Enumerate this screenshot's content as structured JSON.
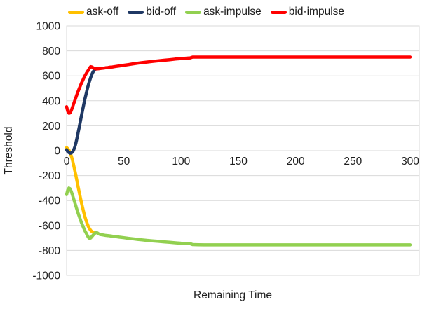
{
  "chart_data": {
    "type": "line",
    "title": "",
    "xlabel": "Remaining Time",
    "ylabel": "Threshold",
    "xlim": [
      0,
      300
    ],
    "ylim": [
      -1000,
      1000
    ],
    "x_ticks": [
      0,
      50,
      100,
      150,
      200,
      250,
      300
    ],
    "y_ticks": [
      1000,
      800,
      600,
      400,
      200,
      0,
      -200,
      -400,
      -600,
      -800,
      -1000
    ],
    "grid": "horizontal",
    "gridline_color": "#d9d9d9",
    "background_color": "#ffffff",
    "legend_position": "top",
    "legend_entries": [
      "ask-off",
      "bid-off",
      "ask-impulse",
      "bid-impulse"
    ],
    "series": [
      {
        "name": "ask-off",
        "color": "#FFC000",
        "points": [
          [
            0,
            24
          ],
          [
            1,
            16
          ],
          [
            2,
            4
          ],
          [
            3,
            -14
          ],
          [
            4,
            -40
          ],
          [
            5,
            -72
          ],
          [
            6,
            -110
          ],
          [
            7,
            -152
          ],
          [
            8,
            -196
          ],
          [
            9,
            -242
          ],
          [
            10,
            -288
          ],
          [
            11,
            -333
          ],
          [
            12,
            -377
          ],
          [
            13,
            -419
          ],
          [
            14,
            -459
          ],
          [
            15,
            -496
          ],
          [
            16,
            -530
          ],
          [
            17,
            -560
          ],
          [
            18,
            -586
          ],
          [
            19,
            -608
          ],
          [
            20,
            -626
          ],
          [
            21,
            -639
          ],
          [
            22,
            -648
          ],
          [
            23,
            -653
          ],
          [
            24,
            -656
          ],
          [
            25,
            -657
          ],
          [
            26,
            -657
          ]
        ]
      },
      {
        "name": "bid-off",
        "color": "#1F3864",
        "points": [
          [
            0,
            8
          ],
          [
            1,
            -8
          ],
          [
            2,
            -16
          ],
          [
            3,
            -20
          ],
          [
            4,
            -19
          ],
          [
            5,
            -12
          ],
          [
            6,
            2
          ],
          [
            7,
            25
          ],
          [
            8,
            58
          ],
          [
            9,
            98
          ],
          [
            10,
            142
          ],
          [
            11,
            188
          ],
          [
            12,
            235
          ],
          [
            13,
            282
          ],
          [
            14,
            328
          ],
          [
            15,
            372
          ],
          [
            16,
            414
          ],
          [
            17,
            454
          ],
          [
            18,
            492
          ],
          [
            19,
            527
          ],
          [
            20,
            558
          ],
          [
            21,
            586
          ],
          [
            22,
            610
          ],
          [
            23,
            630
          ],
          [
            24,
            644
          ],
          [
            25,
            653
          ],
          [
            26,
            656
          ]
        ]
      },
      {
        "name": "ask-impulse",
        "color": "#92D050",
        "points": [
          [
            0,
            -352
          ],
          [
            1,
            -315
          ],
          [
            2,
            -300
          ],
          [
            3,
            -305
          ],
          [
            4,
            -325
          ],
          [
            5,
            -352
          ],
          [
            6,
            -382
          ],
          [
            7,
            -412
          ],
          [
            8,
            -442
          ],
          [
            9,
            -472
          ],
          [
            10,
            -500
          ],
          [
            11,
            -527
          ],
          [
            12,
            -553
          ],
          [
            13,
            -578
          ],
          [
            14,
            -601
          ],
          [
            15,
            -622
          ],
          [
            16,
            -642
          ],
          [
            17,
            -660
          ],
          [
            18,
            -678
          ],
          [
            19,
            -695
          ],
          [
            20,
            -703
          ],
          [
            21,
            -700
          ],
          [
            22,
            -690
          ],
          [
            23,
            -678
          ],
          [
            24,
            -668
          ],
          [
            25,
            -660
          ],
          [
            26,
            -657
          ],
          [
            27,
            -660
          ],
          [
            28,
            -667
          ],
          [
            29,
            -671
          ],
          [
            30,
            -673
          ],
          [
            32,
            -676
          ],
          [
            34,
            -679
          ],
          [
            36,
            -681
          ],
          [
            38,
            -683
          ],
          [
            40,
            -686
          ],
          [
            43,
            -689
          ],
          [
            46,
            -693
          ],
          [
            50,
            -698
          ],
          [
            54,
            -703
          ],
          [
            58,
            -707
          ],
          [
            62,
            -711
          ],
          [
            66,
            -715
          ],
          [
            70,
            -719
          ],
          [
            75,
            -723
          ],
          [
            80,
            -727
          ],
          [
            85,
            -731
          ],
          [
            90,
            -735
          ],
          [
            95,
            -739
          ],
          [
            100,
            -742
          ],
          [
            104,
            -744
          ],
          [
            108,
            -746
          ],
          [
            110,
            -753
          ],
          [
            115,
            -754
          ],
          [
            120,
            -755
          ],
          [
            130,
            -755
          ],
          [
            140,
            -755
          ],
          [
            150,
            -755
          ],
          [
            160,
            -755
          ],
          [
            180,
            -755
          ],
          [
            200,
            -755
          ],
          [
            220,
            -755
          ],
          [
            240,
            -755
          ],
          [
            260,
            -755
          ],
          [
            280,
            -755
          ],
          [
            300,
            -755
          ]
        ]
      },
      {
        "name": "bid-impulse",
        "color": "#FF0000",
        "points": [
          [
            0,
            352
          ],
          [
            1,
            315
          ],
          [
            2,
            300
          ],
          [
            3,
            303
          ],
          [
            4,
            320
          ],
          [
            5,
            345
          ],
          [
            6,
            372
          ],
          [
            7,
            398
          ],
          [
            8,
            424
          ],
          [
            9,
            450
          ],
          [
            10,
            474
          ],
          [
            11,
            498
          ],
          [
            12,
            520
          ],
          [
            13,
            542
          ],
          [
            14,
            562
          ],
          [
            15,
            582
          ],
          [
            16,
            600
          ],
          [
            17,
            617
          ],
          [
            18,
            632
          ],
          [
            19,
            645
          ],
          [
            20,
            662
          ],
          [
            21,
            673
          ],
          [
            22,
            671
          ],
          [
            23,
            665
          ],
          [
            24,
            660
          ],
          [
            25,
            657
          ],
          [
            26,
            655
          ],
          [
            27,
            656
          ],
          [
            28,
            657
          ],
          [
            30,
            659
          ],
          [
            32,
            661
          ],
          [
            34,
            664
          ],
          [
            36,
            666
          ],
          [
            38,
            669
          ],
          [
            40,
            671
          ],
          [
            43,
            675
          ],
          [
            46,
            679
          ],
          [
            50,
            685
          ],
          [
            54,
            690
          ],
          [
            58,
            696
          ],
          [
            62,
            701
          ],
          [
            66,
            706
          ],
          [
            70,
            710
          ],
          [
            75,
            715
          ],
          [
            80,
            720
          ],
          [
            85,
            725
          ],
          [
            90,
            729
          ],
          [
            95,
            734
          ],
          [
            100,
            738
          ],
          [
            104,
            741
          ],
          [
            108,
            744
          ],
          [
            110,
            750
          ],
          [
            115,
            750
          ],
          [
            120,
            750
          ],
          [
            130,
            750
          ],
          [
            140,
            750
          ],
          [
            150,
            750
          ],
          [
            160,
            750
          ],
          [
            180,
            750
          ],
          [
            200,
            750
          ],
          [
            220,
            750
          ],
          [
            240,
            750
          ],
          [
            260,
            750
          ],
          [
            280,
            750
          ],
          [
            300,
            750
          ]
        ]
      }
    ]
  }
}
